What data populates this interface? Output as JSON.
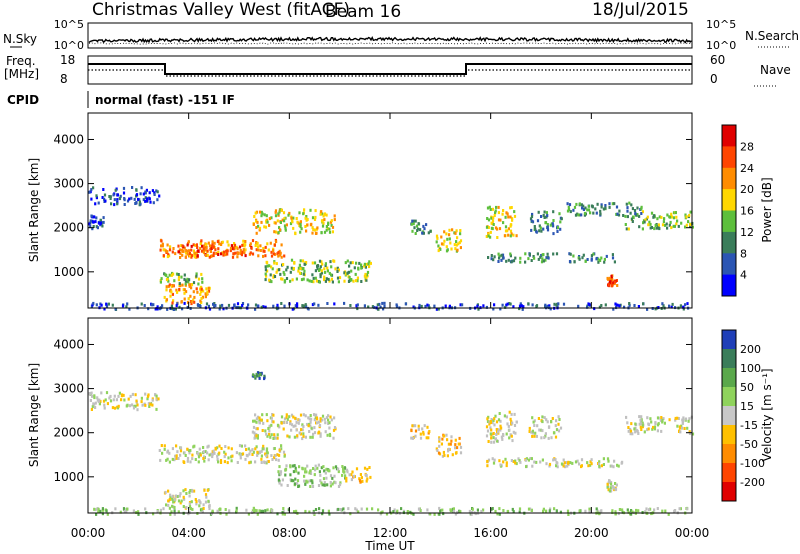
{
  "header": {
    "title": "Christmas Valley West (fitACF)",
    "beam": "Beam 16",
    "date": "18/Jul/2015"
  },
  "strips": {
    "nsky_label": "N.Sky",
    "nsky_ticks": [
      "10^5",
      "10^0"
    ],
    "nsearch_label": "N.Search",
    "nsearch_ticks": [
      "10^5",
      "10^0"
    ],
    "freq_label": [
      "Freq.",
      "[MHz]"
    ],
    "freq_ticks": [
      "18",
      "8"
    ],
    "nave_label": "Nave",
    "nave_ticks": [
      "60",
      "0"
    ],
    "cpid_label": "CPID",
    "cpid_text": "normal (fast) -151 IF"
  },
  "chart_data": [
    {
      "type": "heatmap",
      "name": "power",
      "ylabel": "Slant Range [km]",
      "yticks": [
        "4000",
        "3000",
        "2000",
        "1000"
      ],
      "ylim": [
        180,
        4600
      ],
      "xlim_hours": [
        0,
        24
      ],
      "colorbar": {
        "label": "Power [dB]",
        "ticks": [
          "28",
          "24",
          "20",
          "16",
          "12",
          "8",
          "4"
        ],
        "colors": [
          "#e00000",
          "#ff4500",
          "#ff8c00",
          "#ffd700",
          "#5dbf3c",
          "#3a7d5a",
          "#2b55b3",
          "#0000ff"
        ]
      },
      "regions": [
        {
          "t": [
            0.0,
            2.8
          ],
          "r": [
            2550,
            2950
          ],
          "level": 1
        },
        {
          "t": [
            0.0,
            0.6
          ],
          "r": [
            2000,
            2300
          ],
          "level": 1
        },
        {
          "t": [
            2.8,
            7.8
          ],
          "r": [
            1350,
            1750
          ],
          "level": 5
        },
        {
          "t": [
            3.5,
            6.5
          ],
          "r": [
            1400,
            1650
          ],
          "level": 6
        },
        {
          "t": [
            6.5,
            9.8
          ],
          "r": [
            1900,
            2450
          ],
          "level": 4
        },
        {
          "t": [
            7.0,
            11.2
          ],
          "r": [
            800,
            1300
          ],
          "level": 3
        },
        {
          "t": [
            3.0,
            4.8
          ],
          "r": [
            300,
            750
          ],
          "level": 5
        },
        {
          "t": [
            2.8,
            4.5
          ],
          "r": [
            750,
            1000
          ],
          "level": 3
        },
        {
          "t": [
            12.8,
            13.6
          ],
          "r": [
            1900,
            2200
          ],
          "level": 2
        },
        {
          "t": [
            13.8,
            14.8
          ],
          "r": [
            1500,
            2000
          ],
          "level": 4
        },
        {
          "t": [
            15.8,
            17.0
          ],
          "r": [
            1800,
            2500
          ],
          "level": 4
        },
        {
          "t": [
            17.5,
            18.8
          ],
          "r": [
            1900,
            2400
          ],
          "level": 2
        },
        {
          "t": [
            15.8,
            21.2
          ],
          "r": [
            1250,
            1450
          ],
          "level": 2
        },
        {
          "t": [
            20.6,
            21.0
          ],
          "r": [
            700,
            950
          ],
          "level": 6
        },
        {
          "t": [
            21.3,
            24.0
          ],
          "r": [
            2000,
            2400
          ],
          "level": 3
        },
        {
          "t": [
            19.0,
            22.0
          ],
          "r": [
            2300,
            2600
          ],
          "level": 2
        },
        {
          "t": [
            0.0,
            24.0
          ],
          "r": [
            180,
            320
          ],
          "level": 1
        }
      ]
    },
    {
      "type": "heatmap",
      "name": "velocity",
      "ylabel": "Slant Range [km]",
      "yticks": [
        "4000",
        "3000",
        "2000",
        "1000"
      ],
      "ylim": [
        180,
        4600
      ],
      "xlim_hours": [
        0,
        24
      ],
      "colorbar": {
        "label": "Velocity [m s⁻¹]",
        "ticks": [
          "200",
          "100",
          "50",
          "15",
          "-15",
          "-50",
          "-100",
          "-200"
        ],
        "colors": [
          "#1f3fb8",
          "#3a7d5a",
          "#5aa84b",
          "#8fd35c",
          "#c8c8c8",
          "#ffc000",
          "#ff8c00",
          "#ff4500",
          "#e00000"
        ]
      },
      "ground_scatter_color": "#c0c0c0",
      "regions": [
        {
          "t": [
            0.0,
            2.8
          ],
          "r": [
            2550,
            2950
          ],
          "level": 4
        },
        {
          "t": [
            2.8,
            7.8
          ],
          "r": [
            1350,
            1750
          ],
          "level": 4
        },
        {
          "t": [
            6.5,
            9.8
          ],
          "r": [
            1900,
            2450
          ],
          "level": 4
        },
        {
          "t": [
            7.5,
            10.2
          ],
          "r": [
            800,
            1300
          ],
          "level": 5
        },
        {
          "t": [
            10.2,
            11.2
          ],
          "r": [
            900,
            1250
          ],
          "level": 3
        },
        {
          "t": [
            3.0,
            4.8
          ],
          "r": [
            300,
            750
          ],
          "level": 4
        },
        {
          "t": [
            12.8,
            13.6
          ],
          "r": [
            1900,
            2200
          ],
          "level": 3
        },
        {
          "t": [
            13.8,
            14.8
          ],
          "r": [
            1500,
            2000
          ],
          "level": 3
        },
        {
          "t": [
            15.8,
            17.0
          ],
          "r": [
            1800,
            2500
          ],
          "level": 4
        },
        {
          "t": [
            17.5,
            18.8
          ],
          "r": [
            1900,
            2400
          ],
          "level": 4
        },
        {
          "t": [
            15.8,
            21.2
          ],
          "r": [
            1250,
            1450
          ],
          "level": 4
        },
        {
          "t": [
            20.6,
            21.0
          ],
          "r": [
            700,
            950
          ],
          "level": 4
        },
        {
          "t": [
            21.3,
            24.0
          ],
          "r": [
            2000,
            2400
          ],
          "level": 4
        },
        {
          "t": [
            6.5,
            7.0
          ],
          "r": [
            3250,
            3400
          ],
          "level": 7
        },
        {
          "t": [
            0.0,
            24.0
          ],
          "r": [
            180,
            320
          ],
          "level": 5
        }
      ]
    }
  ],
  "xaxis": {
    "label": "Time UT",
    "ticks": [
      "00:00",
      "04:00",
      "08:00",
      "12:00",
      "16:00",
      "20:00",
      "00:00"
    ]
  }
}
